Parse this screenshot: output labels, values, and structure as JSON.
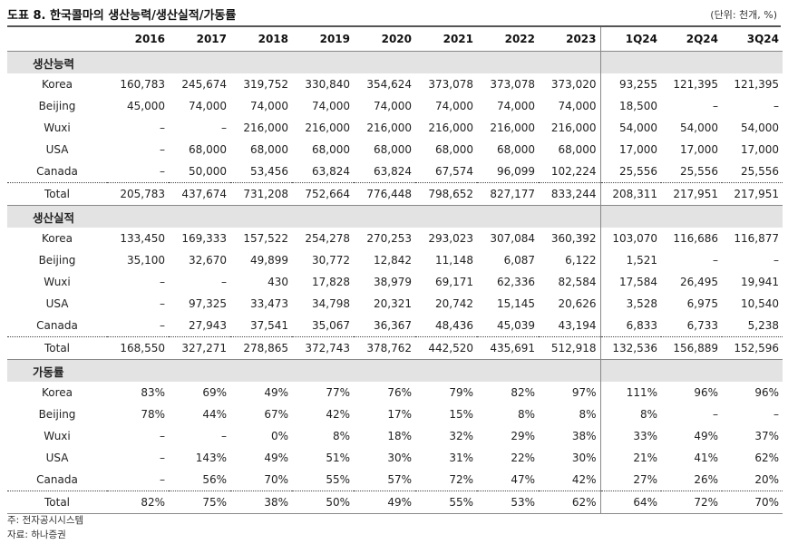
{
  "title": "도표 8. 한국콜마의 생산능력/생산실적/가동률",
  "unit": "(단위: 천개, %)",
  "columns": [
    "2016",
    "2017",
    "2018",
    "2019",
    "2020",
    "2021",
    "2022",
    "2023",
    "1Q24",
    "2Q24",
    "3Q24"
  ],
  "sections": [
    {
      "name": "생산능력",
      "rows": [
        {
          "label": "Korea",
          "values": [
            "160,783",
            "245,674",
            "319,752",
            "330,840",
            "354,624",
            "373,078",
            "373,078",
            "373,020",
            "93,255",
            "121,395",
            "121,395"
          ]
        },
        {
          "label": "Beijing",
          "values": [
            "45,000",
            "74,000",
            "74,000",
            "74,000",
            "74,000",
            "74,000",
            "74,000",
            "74,000",
            "18,500",
            "–",
            "–"
          ]
        },
        {
          "label": "Wuxi",
          "values": [
            "–",
            "–",
            "216,000",
            "216,000",
            "216,000",
            "216,000",
            "216,000",
            "216,000",
            "54,000",
            "54,000",
            "54,000"
          ]
        },
        {
          "label": "USA",
          "values": [
            "–",
            "68,000",
            "68,000",
            "68,000",
            "68,000",
            "68,000",
            "68,000",
            "68,000",
            "17,000",
            "17,000",
            "17,000"
          ]
        },
        {
          "label": "Canada",
          "values": [
            "–",
            "50,000",
            "53,456",
            "63,824",
            "63,824",
            "67,574",
            "96,099",
            "102,224",
            "25,556",
            "25,556",
            "25,556"
          ]
        }
      ],
      "total": {
        "label": "Total",
        "values": [
          "205,783",
          "437,674",
          "731,208",
          "752,664",
          "776,448",
          "798,652",
          "827,177",
          "833,244",
          "208,311",
          "217,951",
          "217,951"
        ]
      }
    },
    {
      "name": "생산실적",
      "rows": [
        {
          "label": "Korea",
          "values": [
            "133,450",
            "169,333",
            "157,522",
            "254,278",
            "270,253",
            "293,023",
            "307,084",
            "360,392",
            "103,070",
            "116,686",
            "116,877"
          ]
        },
        {
          "label": "Beijing",
          "values": [
            "35,100",
            "32,670",
            "49,899",
            "30,772",
            "12,842",
            "11,148",
            "6,087",
            "6,122",
            "1,521",
            "–",
            "–"
          ]
        },
        {
          "label": "Wuxi",
          "values": [
            "–",
            "–",
            "430",
            "17,828",
            "38,979",
            "69,171",
            "62,336",
            "82,584",
            "17,584",
            "26,495",
            "19,941"
          ]
        },
        {
          "label": "USA",
          "values": [
            "–",
            "97,325",
            "33,473",
            "34,798",
            "20,321",
            "20,742",
            "15,145",
            "20,626",
            "3,528",
            "6,975",
            "10,540"
          ]
        },
        {
          "label": "Canada",
          "values": [
            "–",
            "27,943",
            "37,541",
            "35,067",
            "36,367",
            "48,436",
            "45,039",
            "43,194",
            "6,833",
            "6,733",
            "5,238"
          ]
        }
      ],
      "total": {
        "label": "Total",
        "values": [
          "168,550",
          "327,271",
          "278,865",
          "372,743",
          "378,762",
          "442,520",
          "435,691",
          "512,918",
          "132,536",
          "156,889",
          "152,596"
        ]
      }
    },
    {
      "name": "가동률",
      "rows": [
        {
          "label": "Korea",
          "values": [
            "83%",
            "69%",
            "49%",
            "77%",
            "76%",
            "79%",
            "82%",
            "97%",
            "111%",
            "96%",
            "96%"
          ]
        },
        {
          "label": "Beijing",
          "values": [
            "78%",
            "44%",
            "67%",
            "42%",
            "17%",
            "15%",
            "8%",
            "8%",
            "8%",
            "–",
            "–"
          ]
        },
        {
          "label": "Wuxi",
          "values": [
            "–",
            "–",
            "0%",
            "8%",
            "18%",
            "32%",
            "29%",
            "38%",
            "33%",
            "49%",
            "37%"
          ]
        },
        {
          "label": "USA",
          "values": [
            "–",
            "143%",
            "49%",
            "51%",
            "30%",
            "31%",
            "22%",
            "30%",
            "21%",
            "41%",
            "62%"
          ]
        },
        {
          "label": "Canada",
          "values": [
            "–",
            "56%",
            "70%",
            "55%",
            "57%",
            "72%",
            "47%",
            "42%",
            "27%",
            "26%",
            "20%"
          ]
        }
      ],
      "total": {
        "label": "Total",
        "values": [
          "82%",
          "75%",
          "38%",
          "50%",
          "49%",
          "55%",
          "53%",
          "62%",
          "64%",
          "72%",
          "70%"
        ]
      }
    }
  ],
  "notes": [
    "주: 전자공시시스템",
    "자료: 하나증권"
  ]
}
